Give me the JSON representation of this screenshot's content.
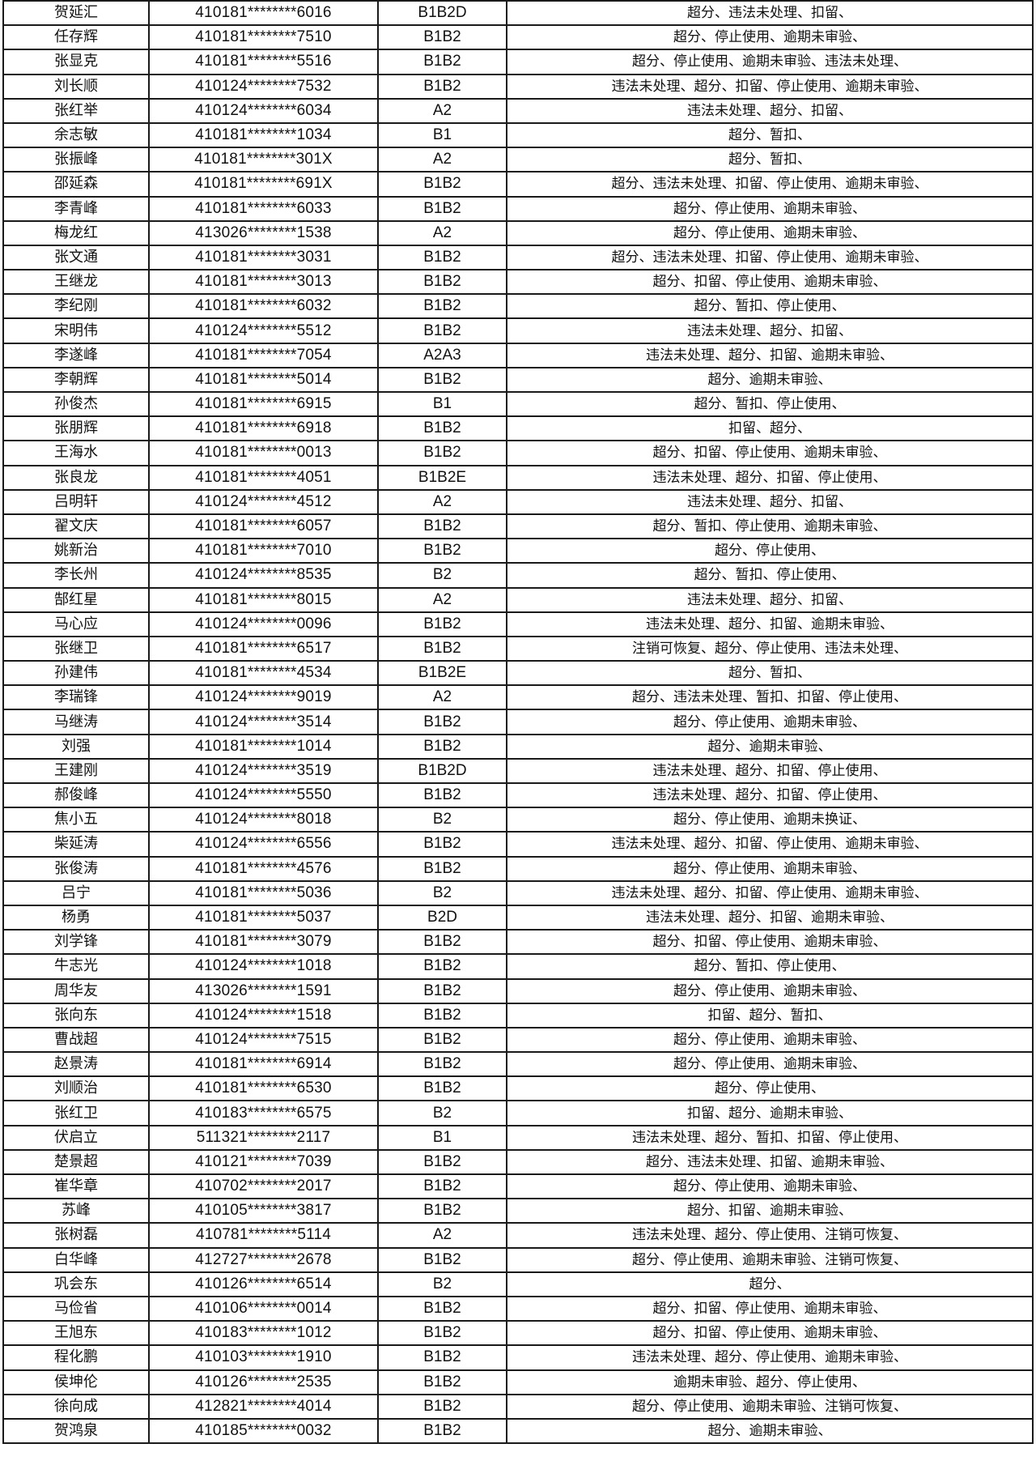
{
  "rows": [
    {
      "name": "贺延汇",
      "id": "410181********6016",
      "class": "B1B2D",
      "status": "超分、违法未处理、扣留、"
    },
    {
      "name": "任存辉",
      "id": "410181********7510",
      "class": "B1B2",
      "status": "超分、停止使用、逾期未审验、"
    },
    {
      "name": "张显克",
      "id": "410181********5516",
      "class": "B1B2",
      "status": "超分、停止使用、逾期未审验、违法未处理、"
    },
    {
      "name": "刘长顺",
      "id": "410124********7532",
      "class": "B1B2",
      "status": "违法未处理、超分、扣留、停止使用、逾期未审验、"
    },
    {
      "name": "张红举",
      "id": "410124********6034",
      "class": "A2",
      "status": "违法未处理、超分、扣留、"
    },
    {
      "name": "余志敏",
      "id": "410181********1034",
      "class": "B1",
      "status": "超分、暂扣、"
    },
    {
      "name": "张振峰",
      "id": "410181********301X",
      "class": "A2",
      "status": "超分、暂扣、"
    },
    {
      "name": "邵延森",
      "id": "410181********691X",
      "class": "B1B2",
      "status": "超分、违法未处理、扣留、停止使用、逾期未审验、"
    },
    {
      "name": "李青峰",
      "id": "410181********6033",
      "class": "B1B2",
      "status": "超分、停止使用、逾期未审验、"
    },
    {
      "name": "梅龙红",
      "id": "413026********1538",
      "class": "A2",
      "status": "超分、停止使用、逾期未审验、"
    },
    {
      "name": "张文通",
      "id": "410181********3031",
      "class": "B1B2",
      "status": "超分、违法未处理、扣留、停止使用、逾期未审验、"
    },
    {
      "name": "王继龙",
      "id": "410181********3013",
      "class": "B1B2",
      "status": "超分、扣留、停止使用、逾期未审验、"
    },
    {
      "name": "李纪刚",
      "id": "410181********6032",
      "class": "B1B2",
      "status": "超分、暂扣、停止使用、"
    },
    {
      "name": "宋明伟",
      "id": "410124********5512",
      "class": "B1B2",
      "status": "违法未处理、超分、扣留、"
    },
    {
      "name": "李遂峰",
      "id": "410181********7054",
      "class": "A2A3",
      "status": "违法未处理、超分、扣留、逾期未审验、"
    },
    {
      "name": "李朝辉",
      "id": "410181********5014",
      "class": "B1B2",
      "status": "超分、逾期未审验、"
    },
    {
      "name": "孙俊杰",
      "id": "410181********6915",
      "class": "B1",
      "status": "超分、暂扣、停止使用、"
    },
    {
      "name": "张朋辉",
      "id": "410181********6918",
      "class": "B1B2",
      "status": "扣留、超分、"
    },
    {
      "name": "王海水",
      "id": "410181********0013",
      "class": "B1B2",
      "status": "超分、扣留、停止使用、逾期未审验、"
    },
    {
      "name": "张良龙",
      "id": "410181********4051",
      "class": "B1B2E",
      "status": "违法未处理、超分、扣留、停止使用、"
    },
    {
      "name": "吕明轩",
      "id": "410124********4512",
      "class": "A2",
      "status": "违法未处理、超分、扣留、"
    },
    {
      "name": "翟文庆",
      "id": "410181********6057",
      "class": "B1B2",
      "status": "超分、暂扣、停止使用、逾期未审验、"
    },
    {
      "name": "姚新治",
      "id": "410181********7010",
      "class": "B1B2",
      "status": "超分、停止使用、"
    },
    {
      "name": "李长州",
      "id": "410124********8535",
      "class": "B2",
      "status": "超分、暂扣、停止使用、"
    },
    {
      "name": "郜红星",
      "id": "410181********8015",
      "class": "A2",
      "status": "违法未处理、超分、扣留、"
    },
    {
      "name": "马心应",
      "id": "410124********0096",
      "class": "B1B2",
      "status": "违法未处理、超分、扣留、逾期未审验、"
    },
    {
      "name": "张继卫",
      "id": "410181********6517",
      "class": "B1B2",
      "status": "注销可恢复、超分、停止使用、违法未处理、"
    },
    {
      "name": "孙建伟",
      "id": "410181********4534",
      "class": "B1B2E",
      "status": "超分、暂扣、"
    },
    {
      "name": "李瑞锋",
      "id": "410124********9019",
      "class": "A2",
      "status": "超分、违法未处理、暂扣、扣留、停止使用、"
    },
    {
      "name": "马继涛",
      "id": "410124********3514",
      "class": "B1B2",
      "status": "超分、停止使用、逾期未审验、"
    },
    {
      "name": "刘强",
      "id": "410181********1014",
      "class": "B1B2",
      "status": "超分、逾期未审验、"
    },
    {
      "name": "王建刚",
      "id": "410124********3519",
      "class": "B1B2D",
      "status": "违法未处理、超分、扣留、停止使用、"
    },
    {
      "name": "郝俊峰",
      "id": "410124********5550",
      "class": "B1B2",
      "status": "违法未处理、超分、扣留、停止使用、"
    },
    {
      "name": "焦小五",
      "id": "410124********8018",
      "class": "B2",
      "status": "超分、停止使用、逾期未换证、"
    },
    {
      "name": "柴延涛",
      "id": "410124********6556",
      "class": "B1B2",
      "status": "违法未处理、超分、扣留、停止使用、逾期未审验、"
    },
    {
      "name": "张俊涛",
      "id": "410181********4576",
      "class": "B1B2",
      "status": "超分、停止使用、逾期未审验、"
    },
    {
      "name": "吕宁",
      "id": "410181********5036",
      "class": "B2",
      "status": "违法未处理、超分、扣留、停止使用、逾期未审验、"
    },
    {
      "name": "杨勇",
      "id": "410181********5037",
      "class": "B2D",
      "status": "违法未处理、超分、扣留、逾期未审验、"
    },
    {
      "name": "刘学锋",
      "id": "410181********3079",
      "class": "B1B2",
      "status": "超分、扣留、停止使用、逾期未审验、"
    },
    {
      "name": "牛志光",
      "id": "410124********1018",
      "class": "B1B2",
      "status": "超分、暂扣、停止使用、"
    },
    {
      "name": "周华友",
      "id": "413026********1591",
      "class": "B1B2",
      "status": "超分、停止使用、逾期未审验、"
    },
    {
      "name": "张向东",
      "id": "410124********1518",
      "class": "B1B2",
      "status": "扣留、超分、暂扣、"
    },
    {
      "name": "曹战超",
      "id": "410124********7515",
      "class": "B1B2",
      "status": "超分、停止使用、逾期未审验、"
    },
    {
      "name": "赵景涛",
      "id": "410181********6914",
      "class": "B1B2",
      "status": "超分、停止使用、逾期未审验、"
    },
    {
      "name": "刘顺治",
      "id": "410181********6530",
      "class": "B1B2",
      "status": "超分、停止使用、"
    },
    {
      "name": "张红卫",
      "id": "410183********6575",
      "class": "B2",
      "status": "扣留、超分、逾期未审验、"
    },
    {
      "name": "伏启立",
      "id": "511321********2117",
      "class": "B1",
      "status": "违法未处理、超分、暂扣、扣留、停止使用、"
    },
    {
      "name": "楚景超",
      "id": "410121********7039",
      "class": "B1B2",
      "status": "超分、违法未处理、扣留、逾期未审验、"
    },
    {
      "name": "崔华章",
      "id": "410702********2017",
      "class": "B1B2",
      "status": "超分、停止使用、逾期未审验、"
    },
    {
      "name": "苏峰",
      "id": "410105********3817",
      "class": "B1B2",
      "status": "超分、扣留、逾期未审验、"
    },
    {
      "name": "张树磊",
      "id": "410781********5114",
      "class": "A2",
      "status": "违法未处理、超分、停止使用、注销可恢复、"
    },
    {
      "name": "白华峰",
      "id": "412727********2678",
      "class": "B1B2",
      "status": "超分、停止使用、逾期未审验、注销可恢复、"
    },
    {
      "name": "巩会东",
      "id": "410126********6514",
      "class": "B2",
      "status": "超分、"
    },
    {
      "name": "马俭省",
      "id": "410106********0014",
      "class": "B1B2",
      "status": "超分、扣留、停止使用、逾期未审验、"
    },
    {
      "name": "王旭东",
      "id": "410183********1012",
      "class": "B1B2",
      "status": "超分、扣留、停止使用、逾期未审验、"
    },
    {
      "name": "程化鹏",
      "id": "410103********1910",
      "class": "B1B2",
      "status": "违法未处理、超分、停止使用、逾期未审验、"
    },
    {
      "name": "侯坤伦",
      "id": "410126********2535",
      "class": "B1B2",
      "status": "逾期未审验、超分、停止使用、"
    },
    {
      "name": "徐向成",
      "id": "412821********4014",
      "class": "B1B2",
      "status": "超分、停止使用、逾期未审验、注销可恢复、"
    },
    {
      "name": "贺鸿泉",
      "id": "410185********0032",
      "class": "B1B2",
      "status": "超分、逾期未审验、"
    }
  ]
}
